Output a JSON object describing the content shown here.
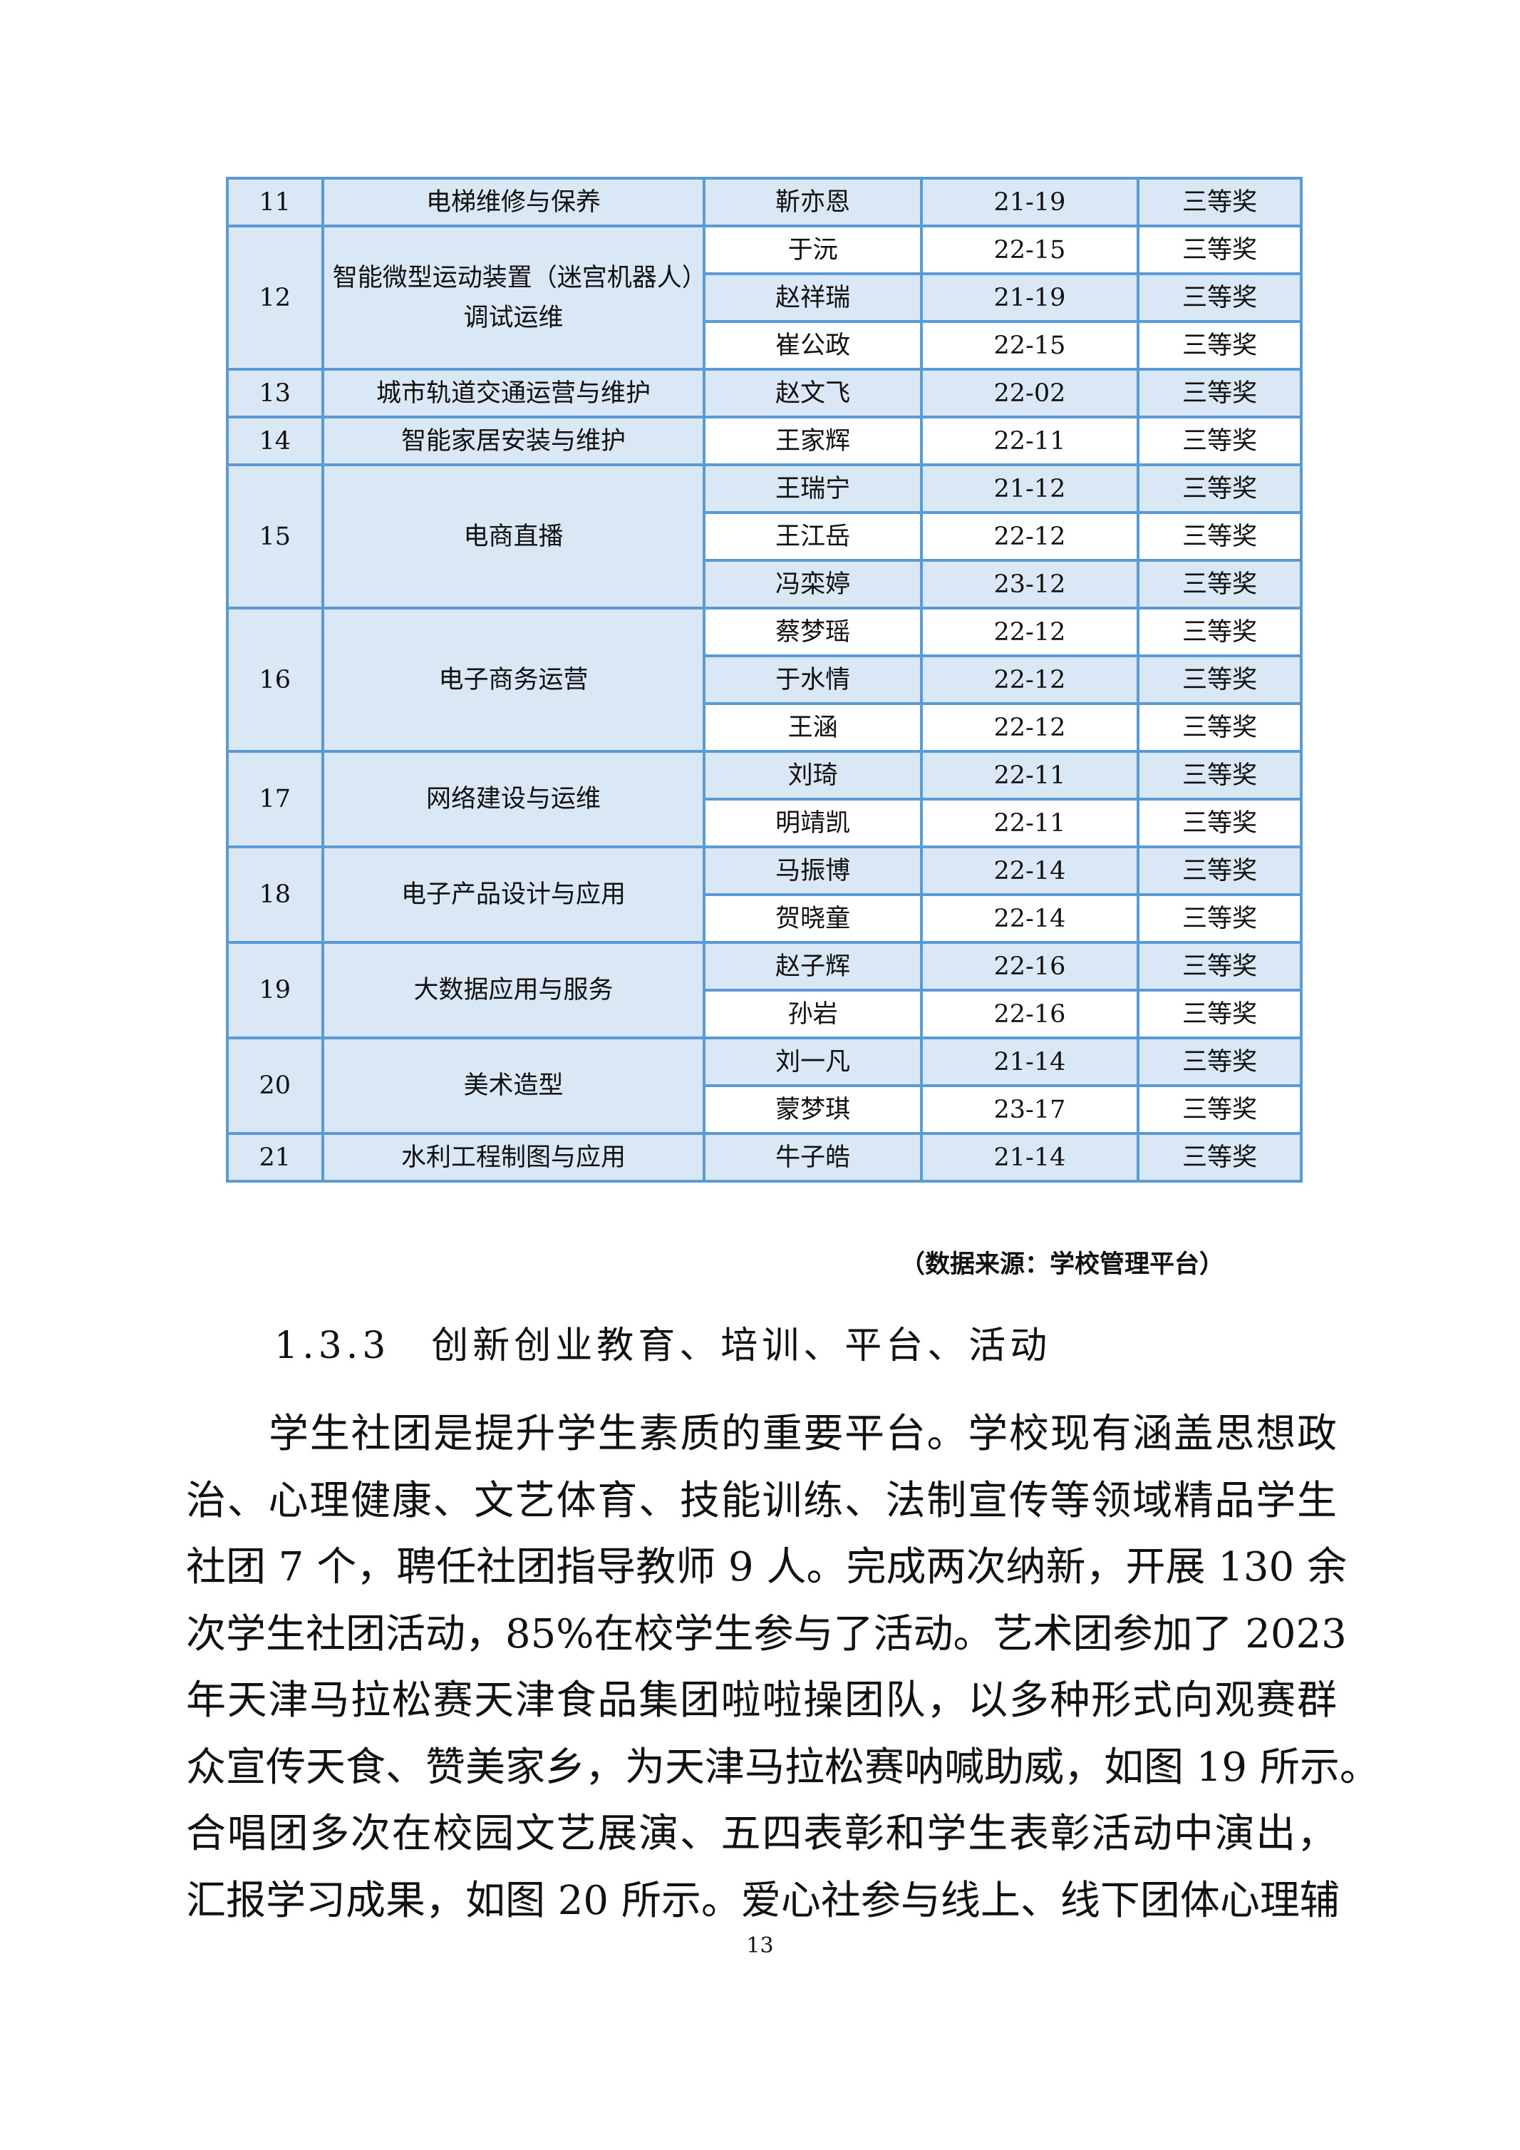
{
  "table": {
    "groups": [
      {
        "no": "11",
        "item": "电梯维修与保养",
        "rows": [
          [
            "靳亦恩",
            "21-19",
            "三等奖"
          ]
        ]
      },
      {
        "no": "12",
        "item": "智能微型运动装置（迷宫机器人）调试运维",
        "rows": [
          [
            "于沅",
            "22-15",
            "三等奖"
          ],
          [
            "赵祥瑞",
            "21-19",
            "三等奖"
          ],
          [
            "崔公政",
            "22-15",
            "三等奖"
          ]
        ]
      },
      {
        "no": "13",
        "item": "城市轨道交通运营与维护",
        "rows": [
          [
            "赵文飞",
            "22-02",
            "三等奖"
          ]
        ]
      },
      {
        "no": "14",
        "item": "智能家居安装与维护",
        "rows": [
          [
            "王家辉",
            "22-11",
            "三等奖"
          ]
        ]
      },
      {
        "no": "15",
        "item": "电商直播",
        "rows": [
          [
            "王瑞宁",
            "21-12",
            "三等奖"
          ],
          [
            "王江岳",
            "22-12",
            "三等奖"
          ],
          [
            "冯栾婷",
            "23-12",
            "三等奖"
          ]
        ]
      },
      {
        "no": "16",
        "item": "电子商务运营",
        "rows": [
          [
            "蔡梦瑶",
            "22-12",
            "三等奖"
          ],
          [
            "于水情",
            "22-12",
            "三等奖"
          ],
          [
            "王涵",
            "22-12",
            "三等奖"
          ]
        ]
      },
      {
        "no": "17",
        "item": "网络建设与运维",
        "rows": [
          [
            "刘琦",
            "22-11",
            "三等奖"
          ],
          [
            "明靖凯",
            "22-11",
            "三等奖"
          ]
        ]
      },
      {
        "no": "18",
        "item": "电子产品设计与应用",
        "rows": [
          [
            "马振博",
            "22-14",
            "三等奖"
          ],
          [
            "贺晓童",
            "22-14",
            "三等奖"
          ]
        ]
      },
      {
        "no": "19",
        "item": "大数据应用与服务",
        "rows": [
          [
            "赵子辉",
            "22-16",
            "三等奖"
          ],
          [
            "孙岩",
            "22-16",
            "三等奖"
          ]
        ]
      },
      {
        "no": "20",
        "item": "美术造型",
        "rows": [
          [
            "刘一凡",
            "21-14",
            "三等奖"
          ],
          [
            "蒙梦琪",
            "23-17",
            "三等奖"
          ]
        ]
      },
      {
        "no": "21",
        "item": "水利工程制图与应用",
        "rows": [
          [
            "牛子皓",
            "21-14",
            "三等奖"
          ]
        ]
      }
    ]
  },
  "source_note": "（数据来源：学校管理平台）",
  "heading": "1.3.3　创新创业教育、培训、平台、活动",
  "paragraph_lines": [
    "学生社团是提升学生素质的重要平台。学校现有涵盖思想政",
    "治、心理健康、文艺体育、技能训练、法制宣传等领域精品学生",
    "社团 7 个，聘任社团指导教师 9 人。完成两次纳新，开展 130 余",
    "次学生社团活动，85%在校学生参与了活动。艺术团参加了 2023",
    "年天津马拉松赛天津食品集团啦啦操团队，以多种形式向观赛群",
    "众宣传天食、赞美家乡，为天津马拉松赛呐喊助威，如图 19 所示。",
    "合唱团多次在校园文艺展演、五四表彰和学生表彰活动中演出，",
    "汇报学习成果，如图 20 所示。爱心社参与线上、线下团体心理辅"
  ],
  "page_number": "13",
  "colors": {
    "border": "#5b9bd5",
    "shade": "#dae7f5"
  }
}
